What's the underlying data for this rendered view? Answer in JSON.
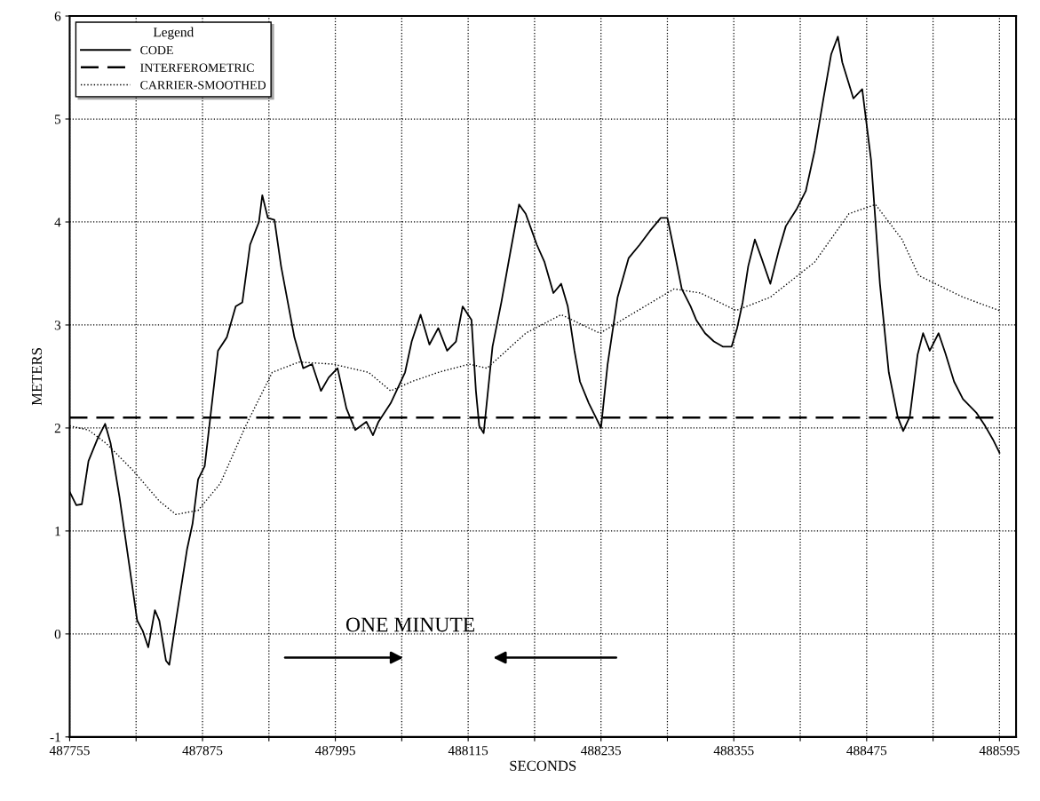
{
  "chart_data": {
    "type": "line",
    "xlabel": "SECONDS",
    "ylabel": "METERS",
    "legend_title": "Legend",
    "annotations": [
      "ONE MINUTE"
    ],
    "xlim": [
      487755,
      488610
    ],
    "ylim": [
      -1,
      6
    ],
    "xticks": [
      487755,
      {
        "value": 487815,
        "label": null
      },
      487875,
      {
        "value": 487935,
        "label": null
      },
      487995,
      {
        "value": 488055,
        "label": null
      },
      488115,
      {
        "value": 488175,
        "label": null
      },
      488235,
      {
        "value": 488295,
        "label": null
      },
      488355,
      {
        "value": 488415,
        "label": null
      },
      488475,
      {
        "value": 488535,
        "label": null
      },
      488595
    ],
    "yticks": [
      -1,
      0,
      1,
      2,
      3,
      4,
      5,
      6
    ],
    "grid": true,
    "legend": "top left",
    "marker": "none",
    "series": [
      {
        "name": "CODE",
        "color": "#000000",
        "line_style": "solid",
        "x": [
          487755,
          487761,
          487766,
          487772,
          487780,
          487787,
          487792,
          487800,
          487808,
          487816,
          487821,
          487826,
          487832,
          487836,
          487842,
          487845,
          487851,
          487861,
          487866,
          487871,
          487877,
          487883,
          487889,
          487897,
          487905,
          487911,
          487918,
          487926,
          487929,
          487934,
          487940,
          487946,
          487958,
          487966,
          487974,
          487982,
          487989,
          487997,
          488005,
          488013,
          488023,
          488029,
          488034,
          488045,
          488058,
          488064,
          488072,
          488080,
          488088,
          488096,
          488104,
          488110,
          488118,
          488122,
          488125,
          488129,
          488137,
          488145,
          488153,
          488161,
          488167,
          488177,
          488184,
          488192,
          488199,
          488205,
          488211,
          488216,
          488224,
          488230,
          488235,
          488241,
          488250,
          488260,
          488270,
          488279,
          488289,
          488295,
          488300,
          488308,
          488316,
          488321,
          488329,
          488337,
          488345,
          488353,
          488358,
          488363,
          488368,
          488374,
          488380,
          488388,
          488396,
          488402,
          488412,
          488420,
          488428,
          488436,
          488443,
          488449,
          488453,
          488463,
          488471,
          488479,
          488487,
          488495,
          488503,
          488508,
          488514,
          488521,
          488526,
          488532,
          488540,
          488546,
          488554,
          488562,
          488574,
          488582,
          488589,
          488595
        ],
        "values": [
          1.38,
          1.25,
          1.26,
          1.68,
          1.89,
          2.04,
          1.85,
          1.33,
          0.73,
          0.13,
          0.03,
          -0.13,
          0.23,
          0.13,
          -0.26,
          -0.3,
          0.13,
          0.82,
          1.07,
          1.5,
          1.63,
          2.19,
          2.75,
          2.88,
          3.18,
          3.22,
          3.78,
          4.0,
          4.26,
          4.04,
          4.02,
          3.57,
          2.88,
          2.58,
          2.62,
          2.36,
          2.49,
          2.58,
          2.19,
          1.98,
          2.06,
          1.93,
          2.06,
          2.24,
          2.54,
          2.84,
          3.1,
          2.81,
          2.97,
          2.75,
          2.84,
          3.18,
          3.05,
          2.36,
          2.02,
          1.95,
          2.79,
          3.22,
          3.7,
          4.17,
          4.08,
          3.78,
          3.61,
          3.31,
          3.4,
          3.18,
          2.75,
          2.45,
          2.24,
          2.11,
          2.0,
          2.62,
          3.27,
          3.65,
          3.78,
          3.91,
          4.04,
          4.04,
          3.78,
          3.35,
          3.18,
          3.05,
          2.92,
          2.84,
          2.79,
          2.79,
          2.97,
          3.22,
          3.57,
          3.83,
          3.65,
          3.4,
          3.74,
          3.96,
          4.13,
          4.3,
          4.69,
          5.2,
          5.63,
          5.8,
          5.55,
          5.2,
          5.29,
          4.6,
          3.4,
          2.54,
          2.11,
          1.97,
          2.11,
          2.71,
          2.92,
          2.75,
          2.92,
          2.73,
          2.45,
          2.28,
          2.15,
          2.02,
          1.89,
          1.76
        ]
      },
      {
        "name": "INTERFEROMETRIC",
        "color": "#000000",
        "line_style": "dashed",
        "x": [
          487755,
          488595
        ],
        "values": [
          2.1,
          2.1
        ]
      },
      {
        "name": "CARRIER-SMOOTHED",
        "color": "#000000",
        "line_style": "dotted",
        "x": [
          487755,
          487772,
          487788,
          487812,
          487836,
          487851,
          487871,
          487891,
          487914,
          487938,
          487962,
          487993,
          488025,
          488045,
          488064,
          488088,
          488116,
          488132,
          488167,
          488199,
          488234,
          488262,
          488301,
          488325,
          488357,
          488388,
          488428,
          488459,
          488483,
          488507,
          488522,
          488562,
          488595
        ],
        "values": [
          2.02,
          1.98,
          1.85,
          1.59,
          1.29,
          1.16,
          1.2,
          1.46,
          2.02,
          2.54,
          2.64,
          2.62,
          2.54,
          2.36,
          2.45,
          2.54,
          2.62,
          2.58,
          2.92,
          3.1,
          2.92,
          3.1,
          3.35,
          3.31,
          3.14,
          3.27,
          3.61,
          4.08,
          4.17,
          3.83,
          3.48,
          3.27,
          3.14
        ]
      }
    ]
  }
}
